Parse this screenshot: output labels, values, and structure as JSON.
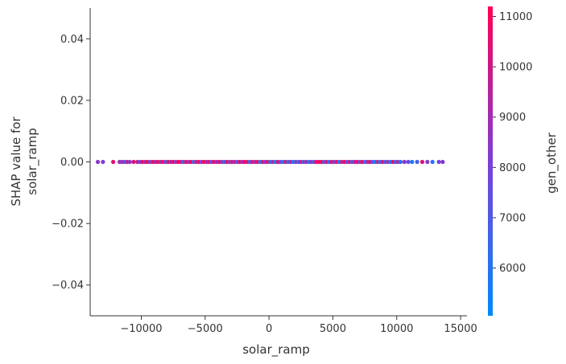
{
  "chart_data": {
    "type": "scatter",
    "title": "",
    "xlabel": "solar_ramp",
    "ylabel_lines": [
      "SHAP value for",
      "solar_ramp"
    ],
    "xlim": [
      -14000,
      15500
    ],
    "ylim": [
      -0.05,
      0.05
    ],
    "x_ticks": [
      -10000,
      -5000,
      0,
      5000,
      10000,
      15000
    ],
    "x_tick_labels": [
      "−10000",
      "−5000",
      "0",
      "5000",
      "10000",
      "15000"
    ],
    "y_ticks": [
      0.04,
      0.02,
      0.0,
      -0.02,
      -0.04
    ],
    "y_tick_labels": [
      "0.04",
      "0.02",
      "0.00",
      "−0.02",
      "−0.04"
    ],
    "grid": false,
    "colorbar": {
      "label": "gen_other",
      "range": [
        5050,
        11200
      ],
      "ticks": [
        6000,
        7000,
        8000,
        9000,
        10000,
        11000
      ],
      "tick_labels": [
        "6000",
        "7000",
        "8000",
        "9000",
        "10000",
        "11000"
      ],
      "color_low": "#008afb",
      "color_mid": "#7d3fd6",
      "color_high": "#ff0052"
    },
    "points_note": "all points have SHAP value 0.00",
    "points": [
      {
        "x": -13400,
        "y": 0,
        "c": 8500
      },
      {
        "x": -13000,
        "y": 0,
        "c": 8200
      },
      {
        "x": -12200,
        "y": 0,
        "c": 10500
      },
      {
        "x": -11700,
        "y": 0,
        "c": 8700
      },
      {
        "x": -11500,
        "y": 0,
        "c": 9000
      },
      {
        "x": -11300,
        "y": 0,
        "c": 7500
      },
      {
        "x": -11100,
        "y": 0,
        "c": 9500
      },
      {
        "x": -10900,
        "y": 0,
        "c": 8600
      },
      {
        "x": -10600,
        "y": 0,
        "c": 10200
      },
      {
        "x": -10300,
        "y": 0,
        "c": 9800
      },
      {
        "x": -10100,
        "y": 0,
        "c": 8000
      },
      {
        "x": -9900,
        "y": 0,
        "c": 10800
      },
      {
        "x": -9700,
        "y": 0,
        "c": 9200
      },
      {
        "x": -9500,
        "y": 0,
        "c": 10900
      },
      {
        "x": -9300,
        "y": 0,
        "c": 7800
      },
      {
        "x": -9100,
        "y": 0,
        "c": 10400
      },
      {
        "x": -8900,
        "y": 0,
        "c": 9600
      },
      {
        "x": -8700,
        "y": 0,
        "c": 10700
      },
      {
        "x": -8500,
        "y": 0,
        "c": 8800
      },
      {
        "x": -8300,
        "y": 0,
        "c": 11000
      },
      {
        "x": -8100,
        "y": 0,
        "c": 7200
      },
      {
        "x": -7900,
        "y": 0,
        "c": 10100
      },
      {
        "x": -7700,
        "y": 0,
        "c": 9400
      },
      {
        "x": -7500,
        "y": 0,
        "c": 10600
      },
      {
        "x": -7300,
        "y": 0,
        "c": 8300
      },
      {
        "x": -7100,
        "y": 0,
        "c": 11100
      },
      {
        "x": -6900,
        "y": 0,
        "c": 9900
      },
      {
        "x": -6700,
        "y": 0,
        "c": 7000
      },
      {
        "x": -6500,
        "y": 0,
        "c": 10300
      },
      {
        "x": -6300,
        "y": 0,
        "c": 8900
      },
      {
        "x": -6100,
        "y": 0,
        "c": 10800
      },
      {
        "x": -5900,
        "y": 0,
        "c": 6500
      },
      {
        "x": -5700,
        "y": 0,
        "c": 9700
      },
      {
        "x": -5500,
        "y": 0,
        "c": 10500
      },
      {
        "x": -5300,
        "y": 0,
        "c": 8100
      },
      {
        "x": -5100,
        "y": 0,
        "c": 11000
      },
      {
        "x": -4900,
        "y": 0,
        "c": 9300
      },
      {
        "x": -4700,
        "y": 0,
        "c": 10200
      },
      {
        "x": -4500,
        "y": 0,
        "c": 7600
      },
      {
        "x": -4300,
        "y": 0,
        "c": 10900
      },
      {
        "x": -4100,
        "y": 0,
        "c": 8700
      },
      {
        "x": -3900,
        "y": 0,
        "c": 10400
      },
      {
        "x": -3700,
        "y": 0,
        "c": 9100
      },
      {
        "x": -3500,
        "y": 0,
        "c": 6200
      },
      {
        "x": -3300,
        "y": 0,
        "c": 10700
      },
      {
        "x": -3100,
        "y": 0,
        "c": 8400
      },
      {
        "x": -2900,
        "y": 0,
        "c": 10000
      },
      {
        "x": -2700,
        "y": 0,
        "c": 9500
      },
      {
        "x": -2500,
        "y": 0,
        "c": 7300
      },
      {
        "x": -2300,
        "y": 0,
        "c": 10600
      },
      {
        "x": -2100,
        "y": 0,
        "c": 8800
      },
      {
        "x": -1900,
        "y": 0,
        "c": 11100
      },
      {
        "x": -1700,
        "y": 0,
        "c": 9800
      },
      {
        "x": -1500,
        "y": 0,
        "c": 6800
      },
      {
        "x": -1300,
        "y": 0,
        "c": 10300
      },
      {
        "x": -1100,
        "y": 0,
        "c": 9000
      },
      {
        "x": -900,
        "y": 0,
        "c": 10900
      },
      {
        "x": -700,
        "y": 0,
        "c": 5800
      },
      {
        "x": -500,
        "y": 0,
        "c": 10100
      },
      {
        "x": -300,
        "y": 0,
        "c": 8600
      },
      {
        "x": -100,
        "y": 0,
        "c": 10700
      },
      {
        "x": 100,
        "y": 0,
        "c": 6100
      },
      {
        "x": 300,
        "y": 0,
        "c": 9400
      },
      {
        "x": 500,
        "y": 0,
        "c": 5600
      },
      {
        "x": 700,
        "y": 0,
        "c": 10500
      },
      {
        "x": 900,
        "y": 0,
        "c": 7900
      },
      {
        "x": 1100,
        "y": 0,
        "c": 5900
      },
      {
        "x": 1300,
        "y": 0,
        "c": 10200
      },
      {
        "x": 1500,
        "y": 0,
        "c": 6400
      },
      {
        "x": 1700,
        "y": 0,
        "c": 9600
      },
      {
        "x": 1900,
        "y": 0,
        "c": 5700
      },
      {
        "x": 2100,
        "y": 0,
        "c": 8300
      },
      {
        "x": 2300,
        "y": 0,
        "c": 6600
      },
      {
        "x": 2500,
        "y": 0,
        "c": 10000
      },
      {
        "x": 2700,
        "y": 0,
        "c": 7100
      },
      {
        "x": 2900,
        "y": 0,
        "c": 9200
      },
      {
        "x": 3100,
        "y": 0,
        "c": 6000
      },
      {
        "x": 3300,
        "y": 0,
        "c": 8500
      },
      {
        "x": 3500,
        "y": 0,
        "c": 6900
      },
      {
        "x": 3700,
        "y": 0,
        "c": 10800
      },
      {
        "x": 3900,
        "y": 0,
        "c": 10600
      },
      {
        "x": 4100,
        "y": 0,
        "c": 11000
      },
      {
        "x": 4300,
        "y": 0,
        "c": 7400
      },
      {
        "x": 4500,
        "y": 0,
        "c": 9900
      },
      {
        "x": 4700,
        "y": 0,
        "c": 6300
      },
      {
        "x": 4900,
        "y": 0,
        "c": 10400
      },
      {
        "x": 5100,
        "y": 0,
        "c": 8000
      },
      {
        "x": 5300,
        "y": 0,
        "c": 10700
      },
      {
        "x": 5500,
        "y": 0,
        "c": 5900
      },
      {
        "x": 5700,
        "y": 0,
        "c": 9300
      },
      {
        "x": 5900,
        "y": 0,
        "c": 10900
      },
      {
        "x": 6100,
        "y": 0,
        "c": 7700
      },
      {
        "x": 6300,
        "y": 0,
        "c": 10200
      },
      {
        "x": 6500,
        "y": 0,
        "c": 6700
      },
      {
        "x": 6700,
        "y": 0,
        "c": 9700
      },
      {
        "x": 6900,
        "y": 0,
        "c": 10500
      },
      {
        "x": 7100,
        "y": 0,
        "c": 8200
      },
      {
        "x": 7300,
        "y": 0,
        "c": 11100
      },
      {
        "x": 7500,
        "y": 0,
        "c": 6100
      },
      {
        "x": 7700,
        "y": 0,
        "c": 9000
      },
      {
        "x": 7900,
        "y": 0,
        "c": 10300
      },
      {
        "x": 8100,
        "y": 0,
        "c": 7300
      },
      {
        "x": 8300,
        "y": 0,
        "c": 5800
      },
      {
        "x": 8500,
        "y": 0,
        "c": 9500
      },
      {
        "x": 8700,
        "y": 0,
        "c": 6500
      },
      {
        "x": 8900,
        "y": 0,
        "c": 10100
      },
      {
        "x": 9100,
        "y": 0,
        "c": 7000
      },
      {
        "x": 9300,
        "y": 0,
        "c": 8800
      },
      {
        "x": 9500,
        "y": 0,
        "c": 5700
      },
      {
        "x": 9700,
        "y": 0,
        "c": 10600
      },
      {
        "x": 9900,
        "y": 0,
        "c": 6800
      },
      {
        "x": 10100,
        "y": 0,
        "c": 9400
      },
      {
        "x": 10300,
        "y": 0,
        "c": 6200
      },
      {
        "x": 10600,
        "y": 0,
        "c": 8600
      },
      {
        "x": 10900,
        "y": 0,
        "c": 7500
      },
      {
        "x": 11200,
        "y": 0,
        "c": 5900
      },
      {
        "x": 11600,
        "y": 0,
        "c": 6600
      },
      {
        "x": 12000,
        "y": 0,
        "c": 10400
      },
      {
        "x": 12400,
        "y": 0,
        "c": 8300
      },
      {
        "x": 12800,
        "y": 0,
        "c": 6000
      },
      {
        "x": 13300,
        "y": 0,
        "c": 7800
      },
      {
        "x": 13600,
        "y": 0,
        "c": 8400
      }
    ]
  }
}
